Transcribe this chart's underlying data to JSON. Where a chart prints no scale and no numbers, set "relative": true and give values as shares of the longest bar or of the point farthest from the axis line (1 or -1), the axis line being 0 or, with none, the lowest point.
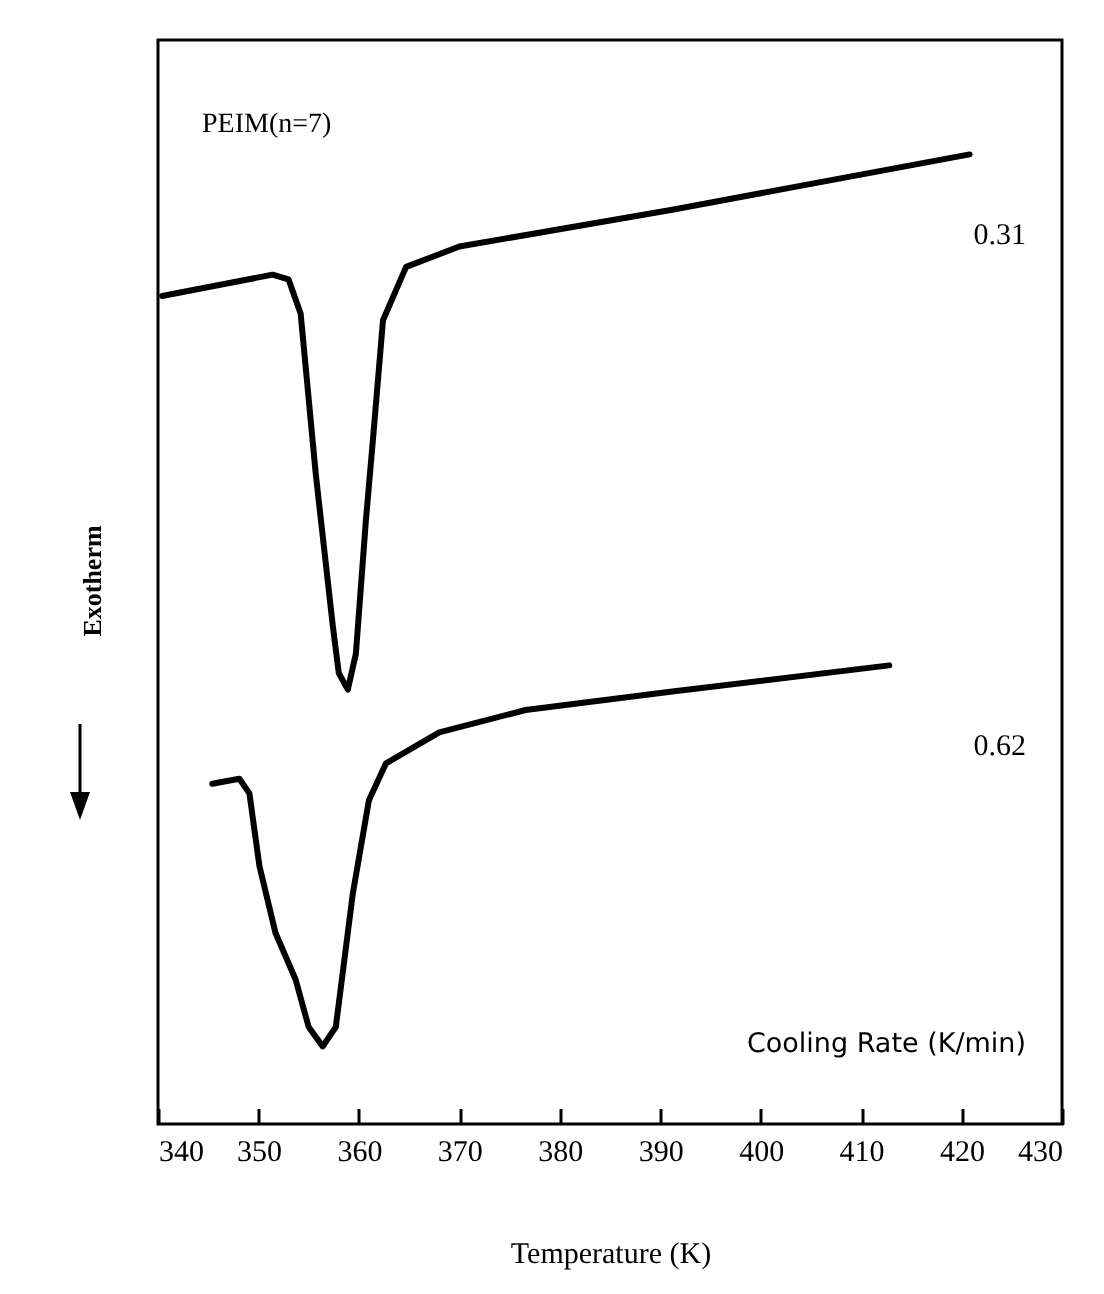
{
  "chart_data": {
    "type": "line",
    "relative": true,
    "xlabel": "Temperature (K)",
    "ylabel": "Exotherm",
    "legend_title": "Cooling Rate (K/min)",
    "annotations": [
      "PEIM(n=7)"
    ],
    "xlim": [
      340,
      430
    ],
    "xticks": [
      340,
      350,
      360,
      370,
      380,
      390,
      400,
      410,
      420,
      430
    ],
    "grid": false,
    "marker": "none",
    "line_style": "solid",
    "series": [
      {
        "name": "0.31",
        "color": "#000000",
        "x": [
          340.4,
          351.4,
          353.0,
          354.2,
          355.7,
          357.4,
          358.0,
          358.9,
          359.7,
          360.7,
          361.4,
          362.4,
          364.7,
          370.0,
          391.2,
          420.8
        ],
        "values": [
          0.854,
          0.876,
          0.871,
          0.836,
          0.671,
          0.514,
          0.465,
          0.448,
          0.485,
          0.623,
          0.706,
          0.829,
          0.884,
          0.905,
          0.943,
          1
        ]
      },
      {
        "name": "0.62",
        "color": "#000000",
        "x": [
          345.4,
          348.1,
          349.1,
          350.1,
          351.7,
          353.7,
          355.0,
          356.4,
          357.7,
          359.4,
          361.0,
          362.7,
          368.0,
          376.6,
          391.2,
          412.8
        ],
        "values": [
          0.351,
          0.356,
          0.341,
          0.266,
          0.197,
          0.149,
          0.1,
          0.08,
          0.1,
          0.238,
          0.334,
          0.372,
          0.404,
          0.427,
          0.446,
          0.473
        ]
      }
    ]
  }
}
